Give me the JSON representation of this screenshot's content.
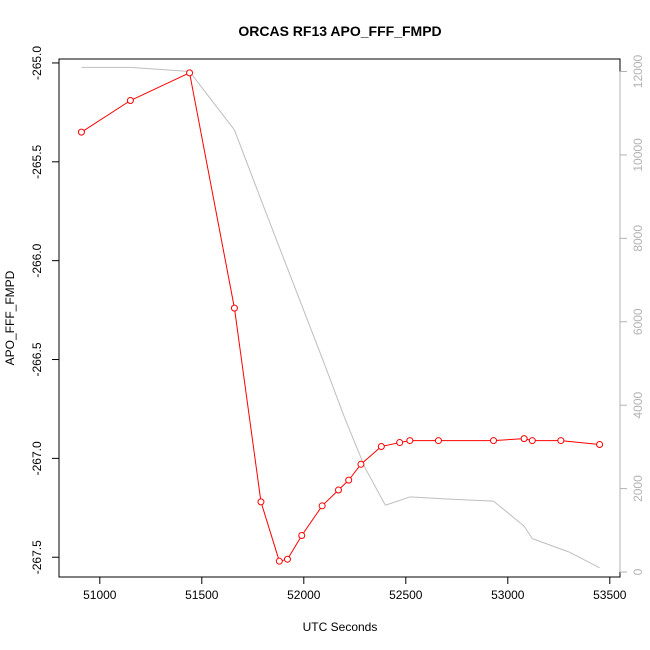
{
  "chart_data": {
    "type": "line",
    "title": "ORCAS RF13 APO_FFF_FMPD",
    "xlabel": "UTC Seconds",
    "ylabel": "APO_FFF_FMPD",
    "xlim": [
      50800,
      53550
    ],
    "ylim": [
      -267.6,
      -264.98
    ],
    "y2lim": [
      -120,
      12300
    ],
    "x_ticks": [
      51000,
      51500,
      52000,
      52500,
      53000,
      53500
    ],
    "x_tick_labels": [
      "51000",
      "51500",
      "52000",
      "52500",
      "53000",
      "53500"
    ],
    "y_ticks": [
      -265.0,
      -265.5,
      -266.0,
      -266.5,
      -267.0,
      -267.5
    ],
    "y_tick_labels": [
      "-265.0",
      "-265.5",
      "-266.0",
      "-266.5",
      "-267.0",
      "-267.5"
    ],
    "y2_ticks": [
      0,
      2000,
      4000,
      6000,
      8000,
      10000,
      12000
    ],
    "y2_tick_labels": [
      "0",
      "2000",
      "4000",
      "6000",
      "8000",
      "10000",
      "12000"
    ],
    "colors": {
      "primary": "#ff0000",
      "secondary": "#bebebe",
      "axis": "#000000",
      "right_axis": "#b3b3b3"
    },
    "series": [
      {
        "axis": "left",
        "color": "#ff0000",
        "markers": "open-circle",
        "x": [
          50910,
          51150,
          51440,
          51660,
          51790,
          51880,
          51920,
          51990,
          52090,
          52170,
          52220,
          52280,
          52380,
          52470,
          52520,
          52660,
          52930,
          53080,
          53120,
          53260,
          53450
        ],
        "y": [
          -265.35,
          -265.19,
          -265.05,
          -266.24,
          -267.22,
          -267.52,
          -267.51,
          -267.39,
          -267.24,
          -267.16,
          -267.11,
          -267.03,
          -266.94,
          -266.92,
          -266.91,
          -266.91,
          -266.91,
          -266.9,
          -266.91,
          -266.91,
          -266.93
        ]
      },
      {
        "axis": "right",
        "color": "#bebebe",
        "markers": "none",
        "x": [
          50910,
          51150,
          51440,
          51660,
          51800,
          51950,
          52100,
          52200,
          52300,
          52400,
          52520,
          52700,
          52930,
          53080,
          53120,
          53300,
          53450
        ],
        "y": [
          12100,
          12100,
          12000,
          10600,
          8800,
          6900,
          5000,
          3700,
          2500,
          1600,
          1800,
          1750,
          1700,
          1100,
          800,
          480,
          100
        ]
      }
    ]
  }
}
